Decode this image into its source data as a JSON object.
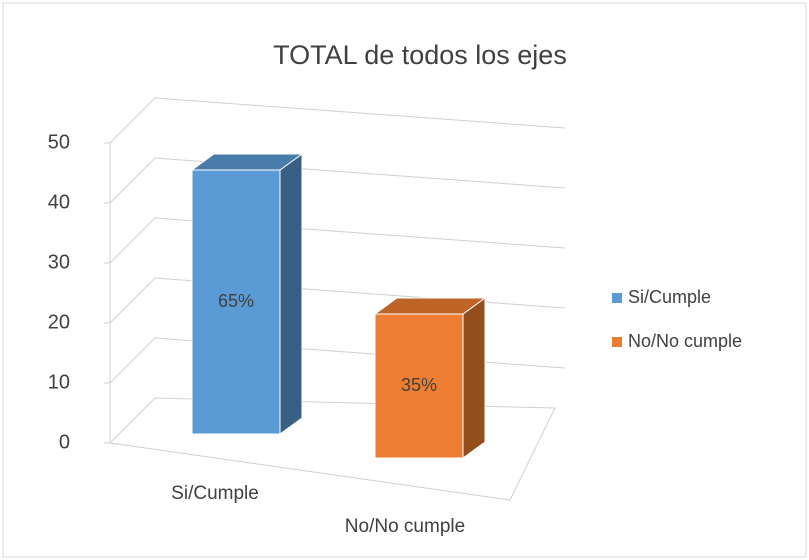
{
  "chart_data": {
    "type": "bar3d",
    "title": "TOTAL de todos los ejes",
    "categories": [
      "Si/Cumple",
      "No/No cumple"
    ],
    "values": [
      44,
      24
    ],
    "labels": [
      "65%",
      "35%"
    ],
    "colors": [
      "#5b9bd5",
      "#ed7d31"
    ],
    "ylim": [
      0,
      50
    ],
    "yticks": [
      0,
      10,
      20,
      30,
      40,
      50
    ],
    "grid": true,
    "legend": "right"
  }
}
